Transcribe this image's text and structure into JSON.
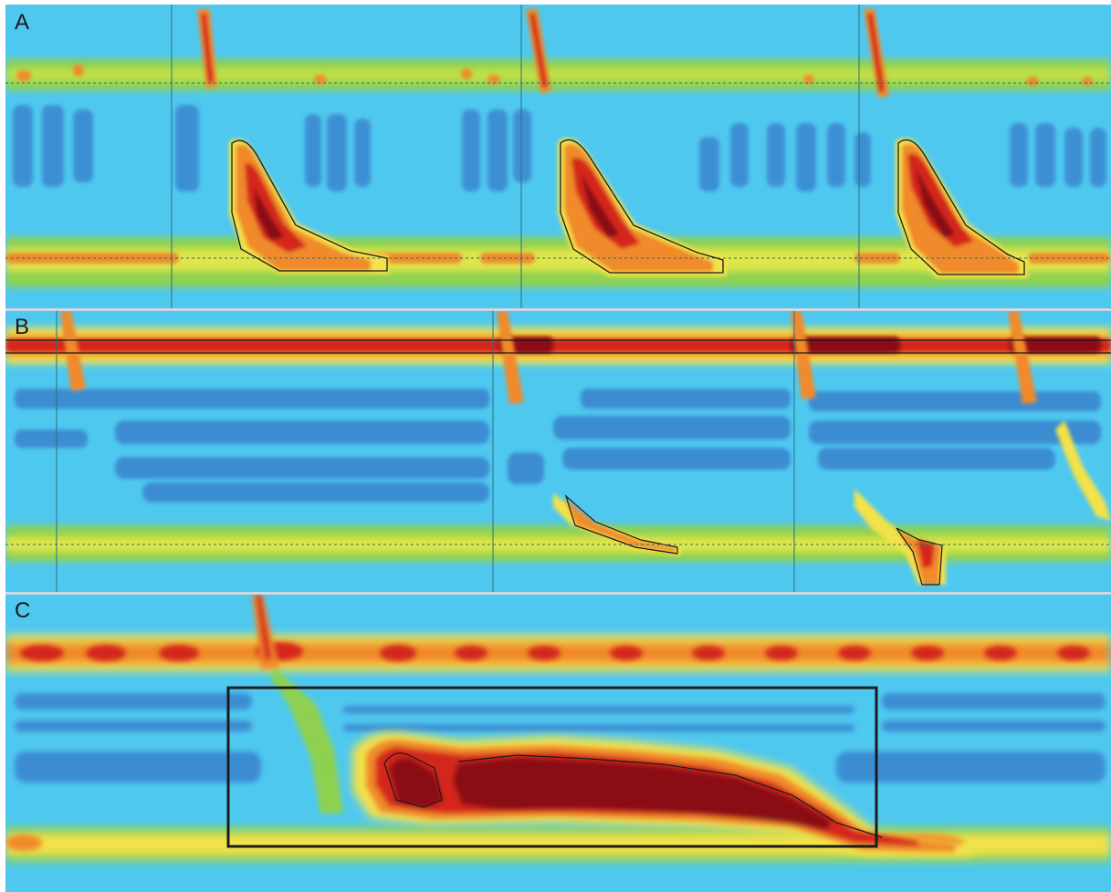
{
  "figure": {
    "panels": [
      {
        "label": "A"
      },
      {
        "label": "B"
      },
      {
        "label": "C"
      }
    ],
    "colors": {
      "background": "#4fc8ef",
      "low_pressure": "#3a86cf",
      "green": "#8fd14f",
      "yellow": "#f3e24a",
      "orange": "#f08a2b",
      "red": "#d4261c",
      "dark_red": "#8a0f12",
      "contour": "#1b1b1b"
    }
  }
}
